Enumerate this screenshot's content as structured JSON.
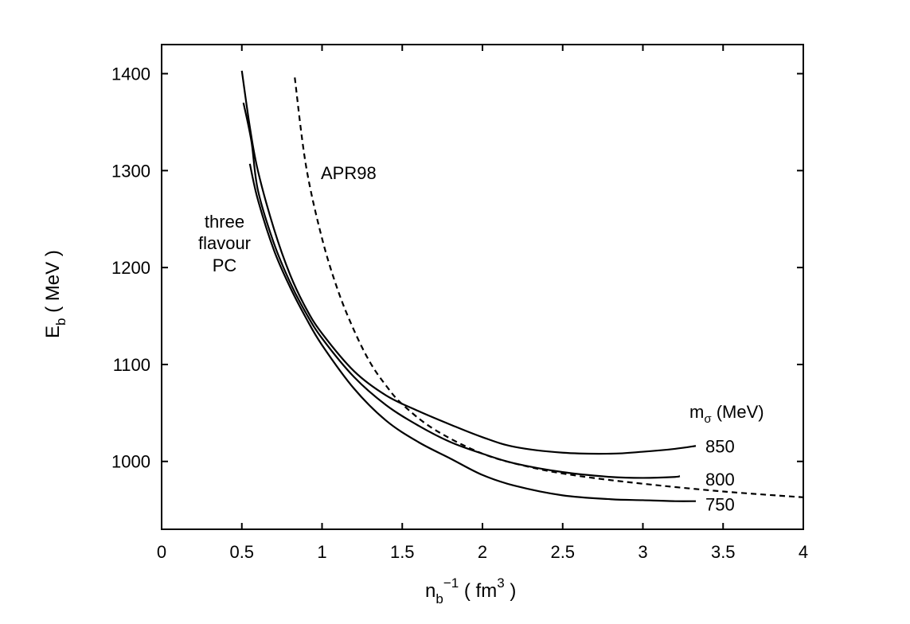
{
  "chart_data": {
    "type": "line",
    "xlabel": {
      "main": "n",
      "sub": "b",
      "sup": "−1",
      "rest": " ( fm",
      "sup2": "3",
      "end": " )"
    },
    "ylabel": {
      "main": "E",
      "sub": "b",
      "rest": " ( MeV )"
    },
    "xlim": [
      0,
      4
    ],
    "ylim": [
      930,
      1430
    ],
    "xticks": [
      0,
      0.5,
      1,
      1.5,
      2,
      2.5,
      3,
      3.5,
      4
    ],
    "xtick_labels": [
      "0",
      "0.5",
      "1",
      "1.5",
      "2",
      "2.5",
      "3",
      "3.5",
      "4"
    ],
    "yticks": [
      1000,
      1100,
      1200,
      1300,
      1400
    ],
    "ytick_labels": [
      "1000",
      "1100",
      "1200",
      "1300",
      "1400"
    ],
    "grid": false,
    "annotations": {
      "apr": "APR98",
      "pc_lines": [
        "three",
        "flavour",
        "PC"
      ],
      "msigma": {
        "main": "m",
        "sub": "σ",
        "rest": " (MeV)"
      }
    },
    "series": [
      {
        "name": "850",
        "style": "solid",
        "x": [
          0.5,
          0.55,
          0.6,
          0.7,
          0.8,
          0.9,
          1.0,
          1.2,
          1.4,
          1.6,
          1.8,
          2.0,
          2.2,
          2.5,
          2.8,
          3.0,
          3.2,
          3.33
        ],
        "y": [
          1403,
          1345,
          1300,
          1240,
          1193,
          1158,
          1132,
          1093,
          1068,
          1052,
          1038,
          1025,
          1015,
          1009,
          1008,
          1010,
          1013,
          1016
        ]
      },
      {
        "name": "800",
        "style": "solid",
        "x": [
          0.51,
          0.56,
          0.6,
          0.7,
          0.8,
          0.9,
          1.0,
          1.2,
          1.4,
          1.6,
          1.8,
          2.0,
          2.2,
          2.5,
          2.8,
          3.0,
          3.2,
          3.23
        ],
        "y": [
          1370,
          1330,
          1280,
          1225,
          1185,
          1153,
          1127,
          1087,
          1058,
          1037,
          1020,
          1008,
          998,
          989,
          984,
          983,
          984,
          985
        ]
      },
      {
        "name": "750",
        "style": "solid",
        "x": [
          0.55,
          0.6,
          0.7,
          0.8,
          0.9,
          1.0,
          1.2,
          1.4,
          1.6,
          1.8,
          2.0,
          2.2,
          2.5,
          2.8,
          3.0,
          3.2,
          3.33
        ],
        "y": [
          1307,
          1270,
          1218,
          1180,
          1148,
          1120,
          1075,
          1042,
          1020,
          1003,
          986,
          975,
          965,
          961,
          960,
          959,
          959
        ]
      },
      {
        "name": "APR98",
        "style": "dashed",
        "x": [
          0.83,
          0.9,
          1.0,
          1.1,
          1.2,
          1.3,
          1.4,
          1.5,
          1.7,
          2.0,
          2.3,
          2.6,
          3.0,
          3.5,
          4.0
        ],
        "y": [
          1396,
          1305,
          1230,
          1176,
          1135,
          1102,
          1078,
          1059,
          1033,
          1008,
          994,
          985,
          977,
          969,
          963
        ]
      }
    ]
  }
}
